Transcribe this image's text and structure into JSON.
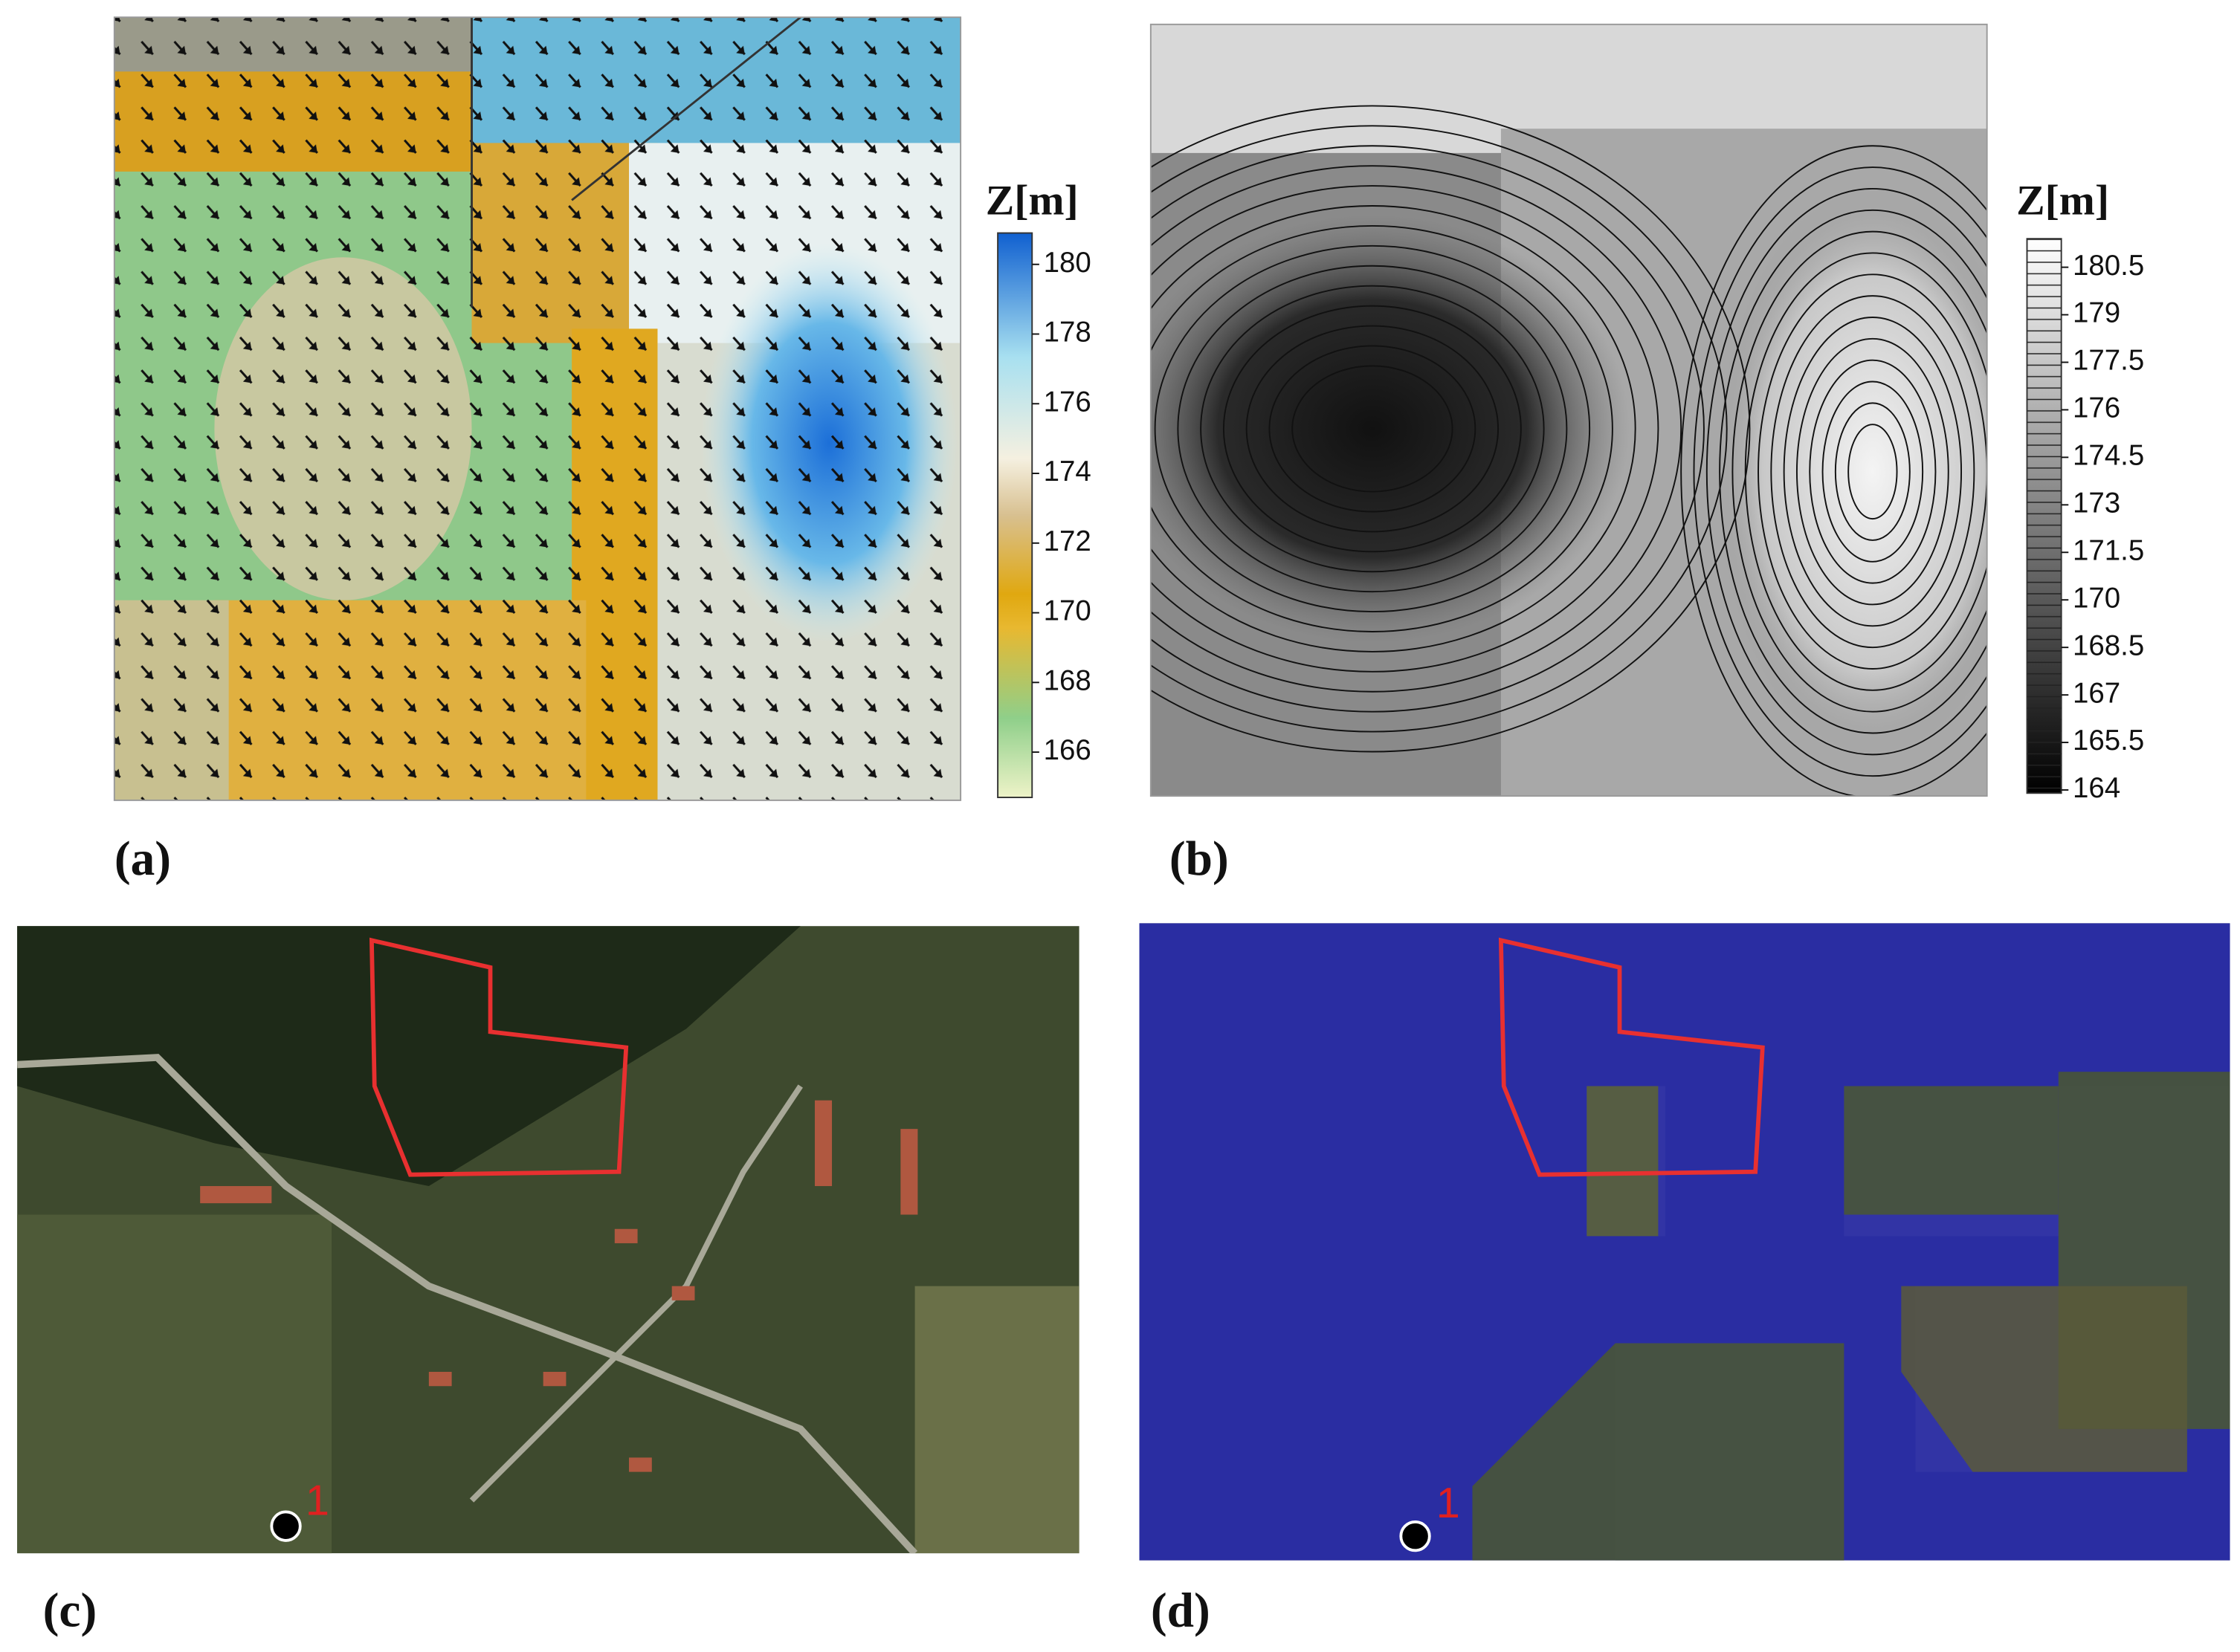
{
  "panels": [
    {
      "label": "(a)",
      "colorbar": {
        "title": "Z[m]",
        "lim": [
          164.7,
          180.9
        ],
        "ticks": [
          166,
          168,
          170,
          172,
          174,
          176,
          178,
          180
        ]
      }
    },
    {
      "label": "(b)",
      "colorbar": {
        "title": "Z[m]",
        "lim": [
          163.9,
          181.4
        ],
        "ticks": [
          164,
          165.5,
          167,
          168.5,
          170,
          171.5,
          173,
          174.5,
          176,
          177.5,
          179,
          180.5
        ]
      }
    },
    {
      "label": "(c)",
      "marker_label": "1"
    },
    {
      "label": "(d)",
      "marker_label": "1"
    }
  ]
}
